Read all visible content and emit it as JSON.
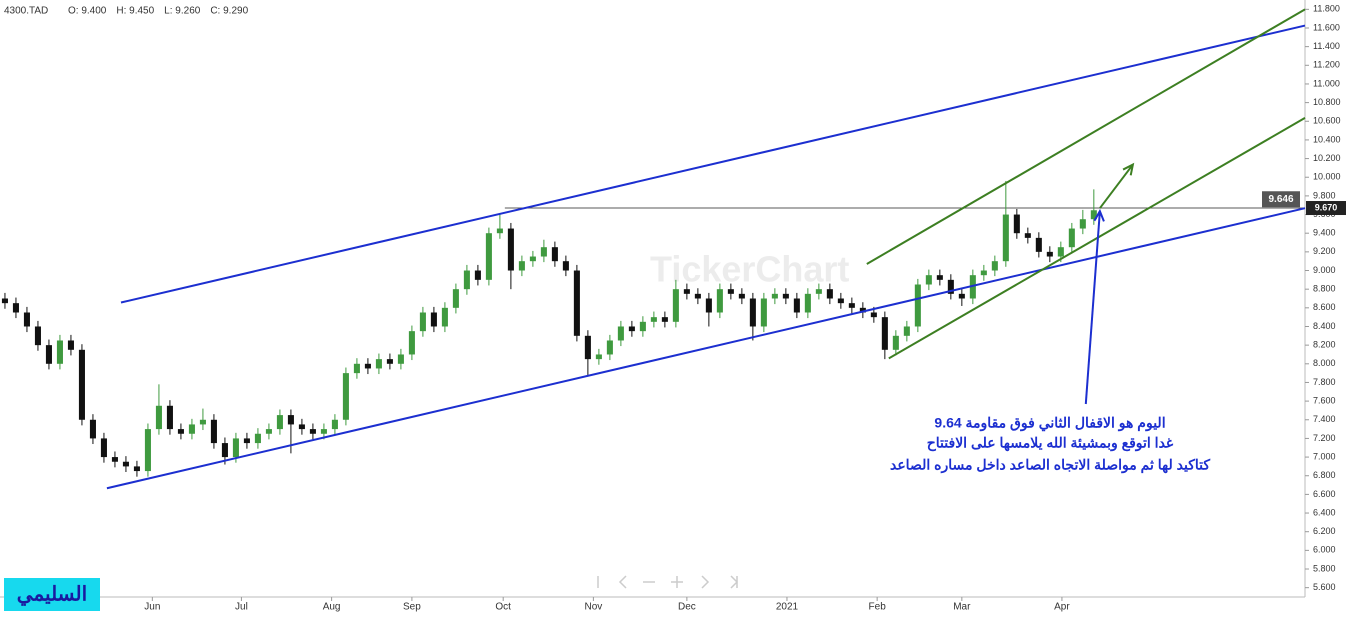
{
  "chart_data": {
    "type": "candlestick",
    "symbol": "4300.TAD",
    "header_items": [
      "O: 9.400",
      "H: 9.450",
      "L: 9.260",
      "C: 9.290"
    ],
    "watermark": "TickerChart",
    "logo": "السليمي",
    "up_color": "#3f9a3f",
    "down_color": "#111111",
    "open": [
      8.7,
      8.65,
      8.55,
      8.4,
      8.2,
      8.0,
      8.25,
      8.15,
      7.4,
      7.2,
      7.0,
      6.95,
      6.9,
      6.85,
      7.3,
      7.55,
      7.3,
      7.25,
      7.35,
      7.4,
      7.15,
      7.0,
      7.2,
      7.15,
      7.25,
      7.3,
      7.45,
      7.35,
      7.3,
      7.25,
      7.3,
      7.4,
      7.9,
      8.0,
      7.95,
      8.05,
      8.0,
      8.1,
      8.35,
      8.55,
      8.4,
      8.6,
      8.8,
      9.0,
      8.9,
      9.4,
      9.45,
      9.0,
      9.1,
      9.15,
      9.25,
      9.1,
      9.0,
      8.3,
      8.05,
      8.1,
      8.25,
      8.4,
      8.35,
      8.45,
      8.5,
      8.45,
      8.8,
      8.75,
      8.7,
      8.55,
      8.8,
      8.75,
      8.7,
      8.4,
      8.7,
      8.75,
      8.7,
      8.55,
      8.75,
      8.8,
      8.7,
      8.65,
      8.6,
      8.55,
      8.5,
      8.15,
      8.3,
      8.4,
      8.85,
      8.95,
      8.9,
      8.75,
      8.7,
      8.95,
      9.0,
      9.1,
      9.6,
      9.4,
      9.35,
      9.2,
      9.15,
      9.25,
      9.45,
      9.55
    ],
    "high": [
      8.76,
      8.71,
      8.61,
      8.46,
      8.26,
      8.31,
      8.31,
      8.21,
      7.46,
      7.26,
      7.06,
      7.01,
      6.96,
      7.36,
      7.78,
      7.61,
      7.36,
      7.41,
      7.52,
      7.46,
      7.21,
      7.26,
      7.26,
      7.31,
      7.36,
      7.51,
      7.51,
      7.41,
      7.36,
      7.36,
      7.46,
      7.96,
      8.06,
      8.06,
      8.11,
      8.11,
      8.16,
      8.41,
      8.61,
      8.61,
      8.66,
      8.86,
      9.06,
      9.06,
      9.46,
      9.6,
      9.51,
      9.16,
      9.21,
      9.33,
      9.31,
      9.16,
      9.06,
      8.36,
      8.16,
      8.31,
      8.46,
      8.46,
      8.51,
      8.56,
      8.56,
      8.9,
      8.86,
      8.81,
      8.76,
      8.86,
      8.86,
      8.81,
      8.76,
      8.76,
      8.81,
      8.81,
      8.76,
      8.81,
      8.86,
      8.86,
      8.76,
      8.71,
      8.66,
      8.61,
      8.56,
      8.36,
      8.46,
      8.91,
      9.01,
      9.01,
      8.96,
      8.81,
      9.01,
      9.06,
      9.16,
      9.96,
      9.66,
      9.46,
      9.41,
      9.26,
      9.31,
      9.51,
      9.65,
      9.87
    ],
    "low": [
      8.59,
      8.49,
      8.34,
      8.14,
      7.94,
      7.94,
      8.09,
      7.34,
      7.14,
      6.94,
      6.89,
      6.84,
      6.79,
      6.79,
      7.24,
      7.24,
      7.19,
      7.19,
      7.29,
      7.09,
      6.92,
      6.94,
      7.09,
      7.09,
      7.19,
      7.24,
      7.04,
      7.24,
      7.19,
      7.19,
      7.24,
      7.34,
      7.84,
      7.89,
      7.89,
      7.94,
      7.94,
      8.04,
      8.29,
      8.34,
      8.34,
      8.54,
      8.74,
      8.84,
      8.84,
      9.34,
      8.8,
      8.94,
      9.04,
      9.09,
      9.04,
      8.94,
      8.24,
      7.87,
      7.99,
      8.04,
      8.19,
      8.29,
      8.29,
      8.39,
      8.39,
      8.39,
      8.69,
      8.64,
      8.4,
      8.49,
      8.69,
      8.64,
      8.25,
      8.34,
      8.64,
      8.64,
      8.49,
      8.49,
      8.69,
      8.64,
      8.59,
      8.54,
      8.49,
      8.44,
      8.05,
      8.09,
      8.24,
      8.34,
      8.79,
      8.84,
      8.69,
      8.62,
      8.64,
      8.89,
      8.94,
      9.04,
      9.34,
      9.29,
      9.14,
      9.09,
      9.09,
      9.19,
      9.39,
      9.49
    ],
    "close": [
      8.65,
      8.55,
      8.4,
      8.2,
      8.0,
      8.25,
      8.15,
      7.4,
      7.2,
      7.0,
      6.95,
      6.9,
      6.85,
      7.3,
      7.55,
      7.3,
      7.25,
      7.35,
      7.4,
      7.15,
      7.0,
      7.2,
      7.15,
      7.25,
      7.3,
      7.45,
      7.35,
      7.3,
      7.25,
      7.3,
      7.4,
      7.9,
      8.0,
      7.95,
      8.05,
      8.0,
      8.1,
      8.35,
      8.55,
      8.4,
      8.6,
      8.8,
      9.0,
      8.9,
      9.4,
      9.45,
      9.0,
      9.1,
      9.15,
      9.25,
      9.1,
      9.0,
      8.3,
      8.05,
      8.1,
      8.25,
      8.4,
      8.35,
      8.45,
      8.5,
      8.45,
      8.8,
      8.75,
      8.7,
      8.55,
      8.8,
      8.75,
      8.7,
      8.4,
      8.7,
      8.75,
      8.7,
      8.55,
      8.75,
      8.8,
      8.7,
      8.65,
      8.6,
      8.55,
      8.5,
      8.15,
      8.3,
      8.4,
      8.85,
      8.95,
      8.9,
      8.75,
      8.7,
      8.95,
      9.0,
      9.1,
      9.6,
      9.4,
      9.35,
      9.2,
      9.15,
      9.25,
      9.45,
      9.55,
      9.646
    ],
    "xlim": [
      -0.45,
      118.2
    ],
    "ylim": [
      5.5,
      11.9
    ],
    "xticks": [
      {
        "value": 13.4,
        "label": "Jun"
      },
      {
        "value": 21.5,
        "label": "Jul"
      },
      {
        "value": 29.7,
        "label": "Aug"
      },
      {
        "value": 37,
        "label": "Sep"
      },
      {
        "value": 45.3,
        "label": "Oct"
      },
      {
        "value": 53.5,
        "label": "Nov"
      },
      {
        "value": 62,
        "label": "Dec"
      },
      {
        "value": 71.1,
        "label": "2021"
      },
      {
        "value": 79.3,
        "label": "Feb"
      },
      {
        "value": 87,
        "label": "Mar"
      },
      {
        "value": 96.1,
        "label": "Apr"
      }
    ],
    "yticks": [
      {
        "value": 5.6,
        "label": "5.600"
      },
      {
        "value": 5.8,
        "label": "5.800"
      },
      {
        "value": 6.0,
        "label": "6.000"
      },
      {
        "value": 6.2,
        "label": "6.200"
      },
      {
        "value": 6.4,
        "label": "6.400"
      },
      {
        "value": 6.6,
        "label": "6.600"
      },
      {
        "value": 6.8,
        "label": "6.800"
      },
      {
        "value": 7.0,
        "label": "7.000"
      },
      {
        "value": 7.2,
        "label": "7.200"
      },
      {
        "value": 7.4,
        "label": "7.400"
      },
      {
        "value": 7.6,
        "label": "7.600"
      },
      {
        "value": 7.8,
        "label": "7.800"
      },
      {
        "value": 8.0,
        "label": "8.000"
      },
      {
        "value": 8.2,
        "label": "8.200"
      },
      {
        "value": 8.4,
        "label": "8.400"
      },
      {
        "value": 8.6,
        "label": "8.600"
      },
      {
        "value": 8.8,
        "label": "8.800"
      },
      {
        "value": 9.0,
        "label": "9.000"
      },
      {
        "value": 9.2,
        "label": "9.200"
      },
      {
        "value": 9.4,
        "label": "9.400"
      },
      {
        "value": 9.6,
        "label": "9.600"
      },
      {
        "value": 9.8,
        "label": "9.800"
      },
      {
        "value": 10.0,
        "label": "10.000"
      },
      {
        "value": 10.2,
        "label": "10.200"
      },
      {
        "value": 10.4,
        "label": "10.400"
      },
      {
        "value": 10.6,
        "label": "10.600"
      },
      {
        "value": 10.8,
        "label": "10.800"
      },
      {
        "value": 11.0,
        "label": "11.000"
      },
      {
        "value": 11.2,
        "label": "11.200"
      },
      {
        "value": 11.4,
        "label": "11.400"
      },
      {
        "value": 11.6,
        "label": "11.600"
      },
      {
        "value": 11.8,
        "label": "11.800"
      }
    ],
    "last_price": 9.646,
    "level_line": {
      "x": 45.45,
      "value": 9.67,
      "label": "9.670"
    },
    "trendlines": [
      {
        "color": "#1c2fd0",
        "x": [
          10.55,
          118.2
        ],
        "y": [
          8.657,
          11.626
        ]
      },
      {
        "color": "#1c2fd0",
        "x": [
          9.27,
          118.2
        ],
        "y": [
          6.666,
          9.668
        ]
      },
      {
        "color": "#3d7f22",
        "x": [
          78.36,
          118.2
        ],
        "y": [
          9.07,
          11.8
        ]
      },
      {
        "color": "#3d7f22",
        "x": [
          80.36,
          118.2
        ],
        "y": [
          8.058,
          10.636
        ]
      }
    ],
    "arrows": [
      {
        "color": "#3d7f22",
        "x": [
          99.55,
          102.55
        ],
        "y": [
          9.668,
          10.136
        ]
      },
      {
        "color": "#1c2fd0",
        "x": [
          98.27,
          99.55
        ],
        "y": [
          7.569,
          9.636
        ]
      }
    ],
    "annotation": [
      "اليوم هو الاقفال الثاني فوق مقاومة 9.64",
      "غدا اتوقع وبمشيئة الله يلامسها على الافتتاح",
      "كتاكيد لها ثم مواصلة الاتجاه الصاعد داخل مساره الصاعد"
    ]
  }
}
